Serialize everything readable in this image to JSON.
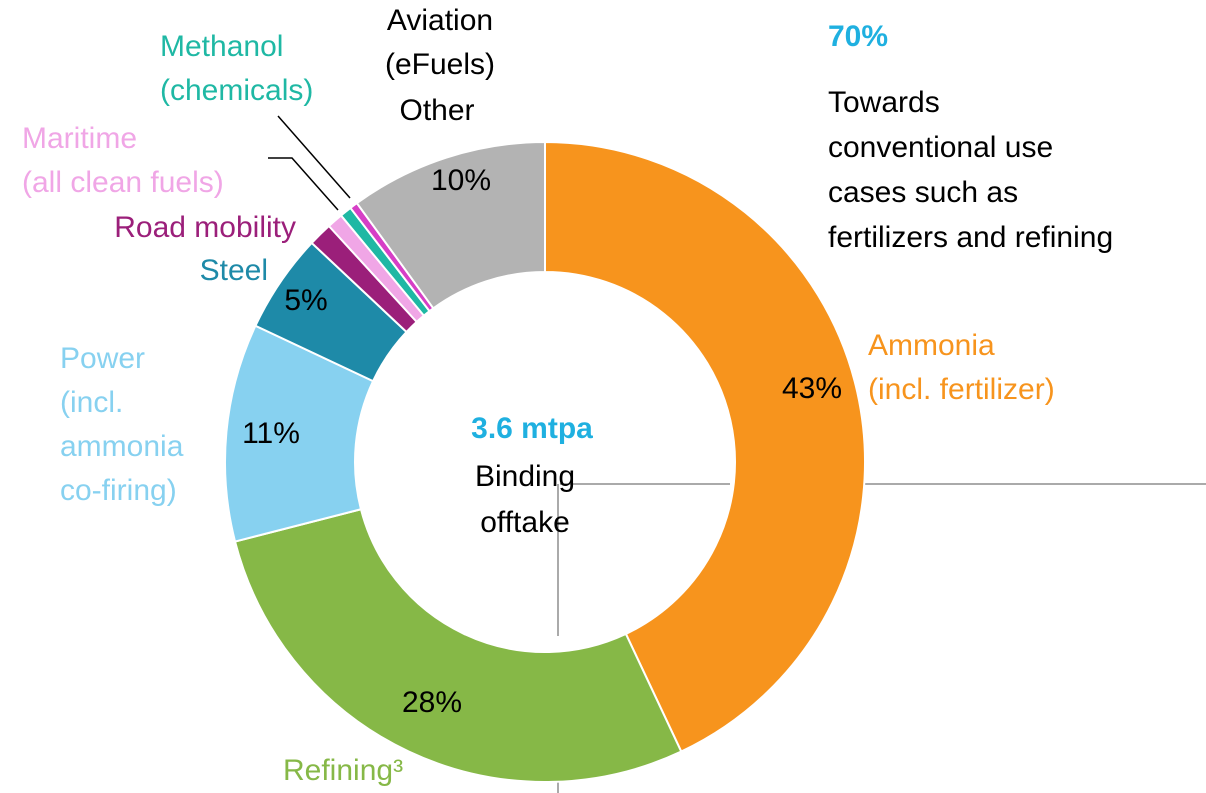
{
  "chart_data": {
    "type": "donut",
    "categories": [
      "Ammonia\n(incl. fertilizer)",
      "Refining³",
      "Power\n(incl.\nammonia\nco-firing)",
      "Steel",
      "Road mobility",
      "Maritime\n(all clean fuels)",
      "Methanol\n(chemicals)",
      "Aviation\n(eFuels)",
      "Other"
    ],
    "values": [
      43,
      28,
      11,
      5,
      1.2,
      0.8,
      0.6,
      0.4,
      10
    ],
    "value_labels": [
      "43%",
      "28%",
      "11%",
      "5%",
      null,
      null,
      null,
      null,
      "10%"
    ],
    "colors": [
      "#f7941d",
      "#86b847",
      "#87d1f0",
      "#1e8aa8",
      "#9b1f7a",
      "#f0a6e6",
      "#1fb8a4",
      "#d63fc6",
      "#b3b3b3"
    ],
    "label_colors": [
      "#f7941d",
      "#86b847",
      "#87d1f0",
      "#1e8aa8",
      "#9b1f7a",
      "#f0a6e6",
      "#1fb8a4",
      "#000000",
      "#000000"
    ],
    "center_value": "3.6 mtpa",
    "center_label": "Binding\nofftake",
    "annotation_value": "70%",
    "annotation_text": "Towards\nconventional use\ncases such as\nfertilizers and refining"
  }
}
